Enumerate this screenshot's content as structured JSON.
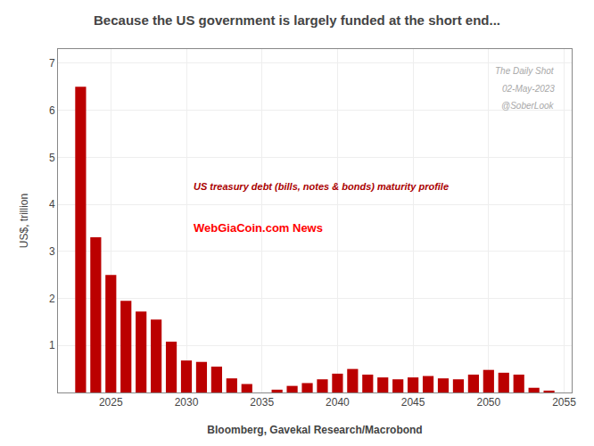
{
  "chart_data": {
    "type": "bar",
    "title": "Because the US government is largely funded at the short end...",
    "xlabel": "Bloomberg, Gavekal Research/Macrobond",
    "ylabel": "US$, trillion",
    "annotations": [
      "US treasury debt (bills, notes & bonds) maturity profile",
      "The Daily Shot",
      "02-May-2023",
      "@SoberLook",
      "WebGiaCoin.com News"
    ],
    "x": [
      2023,
      2024,
      2025,
      2026,
      2027,
      2028,
      2029,
      2030,
      2031,
      2032,
      2033,
      2034,
      2036,
      2037,
      2038,
      2039,
      2040,
      2041,
      2042,
      2043,
      2044,
      2045,
      2046,
      2047,
      2048,
      2049,
      2050,
      2051,
      2052,
      2053,
      2054
    ],
    "values": [
      6.5,
      3.3,
      2.5,
      1.95,
      1.72,
      1.55,
      1.08,
      0.68,
      0.65,
      0.55,
      0.3,
      0.18,
      0.06,
      0.14,
      0.2,
      0.28,
      0.4,
      0.5,
      0.38,
      0.32,
      0.28,
      0.32,
      0.35,
      0.3,
      0.28,
      0.38,
      0.48,
      0.42,
      0.38,
      0.1,
      0.04
    ],
    "color": "#bb0000",
    "xlim": [
      2021.5,
      2055.5
    ],
    "xticks": [
      2025,
      2030,
      2035,
      2040,
      2045,
      2050,
      2055
    ],
    "ylim": [
      0,
      7.3
    ],
    "yticks": [
      1,
      2,
      3,
      4,
      5,
      6,
      7
    ],
    "grid": true
  }
}
